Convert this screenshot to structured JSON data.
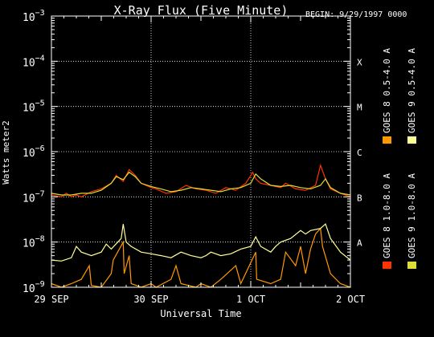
{
  "chart_data": {
    "type": "line",
    "title": "X-Ray Flux (Five Minute)",
    "begin_label": "BEGIN: 9/29/1997 0000",
    "ylabel": "Watts meter2",
    "xlabel": "Universal Time",
    "yscale": "log",
    "ylim": [
      1e-09,
      0.001
    ],
    "xlim": [
      0,
      3
    ],
    "x_units": "days since 29 SEP 1997 00:00",
    "x_ticks": [
      {
        "value": 0,
        "label": "29 SEP"
      },
      {
        "value": 1,
        "label": "30 SEP"
      },
      {
        "value": 2,
        "label": "1 OCT"
      },
      {
        "value": 3,
        "label": "2 OCT"
      }
    ],
    "y_ticks": [
      {
        "value": 1e-09,
        "base": "10",
        "exp": "−9"
      },
      {
        "value": 1e-08,
        "base": "10",
        "exp": "−8"
      },
      {
        "value": 1e-07,
        "base": "10",
        "exp": "−7"
      },
      {
        "value": 1e-06,
        "base": "10",
        "exp": "−6"
      },
      {
        "value": 1e-05,
        "base": "10",
        "exp": "−5"
      },
      {
        "value": 0.0001,
        "base": "10",
        "exp": "−4"
      },
      {
        "value": 0.001,
        "base": "10",
        "exp": "−3"
      }
    ],
    "flare_classes": [
      {
        "label": "A",
        "value": 1e-08
      },
      {
        "label": "B",
        "value": 1e-07
      },
      {
        "label": "C",
        "value": 1e-06
      },
      {
        "label": "M",
        "value": 1e-05
      },
      {
        "label": "X",
        "value": 0.0001
      }
    ],
    "grid": true,
    "legend_position": "right",
    "series": [
      {
        "name": "GOES 8 1.0-8.0 A",
        "color": "#ff3300",
        "x": [
          0,
          0.1,
          0.15,
          0.2,
          0.25,
          0.3,
          0.4,
          0.5,
          0.6,
          0.65,
          0.72,
          0.78,
          0.84,
          0.9,
          1.0,
          1.05,
          1.15,
          1.25,
          1.35,
          1.45,
          1.55,
          1.65,
          1.75,
          1.85,
          1.95,
          2.02,
          2.05,
          2.1,
          2.2,
          2.3,
          2.35,
          2.45,
          2.55,
          2.65,
          2.7,
          2.75,
          2.8,
          2.9,
          3.0
        ],
        "values": [
          1.1e-07,
          1e-07,
          1.2e-07,
          1e-07,
          1.1e-07,
          1e-07,
          1.3e-07,
          1.5e-07,
          2e-07,
          3e-07,
          2.2e-07,
          4e-07,
          3e-07,
          2e-07,
          1.6e-07,
          1.5e-07,
          1.2e-07,
          1.3e-07,
          1.8e-07,
          1.5e-07,
          1.4e-07,
          1.2e-07,
          1.6e-07,
          1.4e-07,
          2e-07,
          3.5e-07,
          2.5e-07,
          2e-07,
          1.8e-07,
          1.6e-07,
          2e-07,
          1.5e-07,
          1.4e-07,
          1.8e-07,
          5e-07,
          2.5e-07,
          1.5e-07,
          1.2e-07,
          1e-07
        ]
      },
      {
        "name": "GOES 8 0.5-4.0 A",
        "color": "#ff9900",
        "x": [
          0,
          0.1,
          0.2,
          0.3,
          0.38,
          0.4,
          0.5,
          0.6,
          0.62,
          0.72,
          0.73,
          0.78,
          0.8,
          0.9,
          1.0,
          1.05,
          1.2,
          1.25,
          1.3,
          1.45,
          1.5,
          1.6,
          1.7,
          1.85,
          1.9,
          2.05,
          2.06,
          2.2,
          2.3,
          2.35,
          2.45,
          2.5,
          2.55,
          2.6,
          2.65,
          2.7,
          2.72,
          2.8,
          2.9,
          3.0
        ],
        "values": [
          1.2e-09,
          1e-09,
          1.2e-09,
          1.5e-09,
          3e-09,
          1.1e-09,
          1e-09,
          2e-09,
          4e-09,
          1e-08,
          2e-09,
          5e-09,
          1.2e-09,
          1e-09,
          1.2e-09,
          1e-09,
          1.5e-09,
          3e-09,
          1.2e-09,
          1e-09,
          1.2e-09,
          1e-09,
          1.5e-09,
          3e-09,
          1.2e-09,
          6e-09,
          1.5e-09,
          1.2e-09,
          1.5e-09,
          6e-09,
          3e-09,
          8e-09,
          2e-09,
          7e-09,
          1.5e-08,
          2e-08,
          8e-09,
          2e-09,
          1.2e-09,
          1e-09
        ]
      },
      {
        "name": "GOES 9 1.0-8.0 A",
        "color": "#dddd33",
        "x": [
          0,
          0.1,
          0.2,
          0.3,
          0.4,
          0.5,
          0.6,
          0.65,
          0.72,
          0.78,
          0.84,
          0.9,
          1.0,
          1.1,
          1.2,
          1.3,
          1.4,
          1.5,
          1.6,
          1.7,
          1.8,
          1.9,
          2.0,
          2.05,
          2.1,
          2.2,
          2.3,
          2.4,
          2.5,
          2.6,
          2.7,
          2.75,
          2.8,
          2.9,
          3.0
        ],
        "values": [
          1.2e-07,
          1.1e-07,
          1.1e-07,
          1.2e-07,
          1.2e-07,
          1.4e-07,
          2e-07,
          2.8e-07,
          2.4e-07,
          3.5e-07,
          2.8e-07,
          2e-07,
          1.7e-07,
          1.5e-07,
          1.3e-07,
          1.4e-07,
          1.6e-07,
          1.5e-07,
          1.4e-07,
          1.3e-07,
          1.5e-07,
          1.6e-07,
          2e-07,
          3.2e-07,
          2.5e-07,
          1.8e-07,
          1.7e-07,
          1.8e-07,
          1.6e-07,
          1.5e-07,
          1.8e-07,
          2.5e-07,
          1.6e-07,
          1.2e-07,
          1.1e-07
        ]
      },
      {
        "name": "GOES 9 0.5-4.0 A",
        "color": "#ffff99",
        "x": [
          0,
          0.1,
          0.2,
          0.25,
          0.3,
          0.4,
          0.5,
          0.55,
          0.6,
          0.7,
          0.72,
          0.75,
          0.8,
          0.9,
          1.0,
          1.1,
          1.2,
          1.3,
          1.4,
          1.5,
          1.55,
          1.6,
          1.7,
          1.8,
          1.9,
          2.0,
          2.05,
          2.1,
          2.2,
          2.25,
          2.3,
          2.4,
          2.5,
          2.55,
          2.6,
          2.7,
          2.75,
          2.8,
          2.9,
          3.0
        ],
        "values": [
          4e-09,
          3.8e-09,
          4.5e-09,
          8e-09,
          6e-09,
          5e-09,
          6e-09,
          9e-09,
          7e-09,
          1.2e-08,
          2.5e-08,
          1e-08,
          8e-09,
          6e-09,
          5.5e-09,
          5e-09,
          4.5e-09,
          6e-09,
          5e-09,
          4.5e-09,
          5e-09,
          6e-09,
          5e-09,
          5.5e-09,
          7e-09,
          8e-09,
          1.3e-08,
          8e-09,
          6e-09,
          8e-09,
          1e-08,
          1.2e-08,
          1.8e-08,
          1.5e-08,
          1.8e-08,
          2e-08,
          2.5e-08,
          1.2e-08,
          6e-09,
          4e-09
        ]
      }
    ]
  }
}
